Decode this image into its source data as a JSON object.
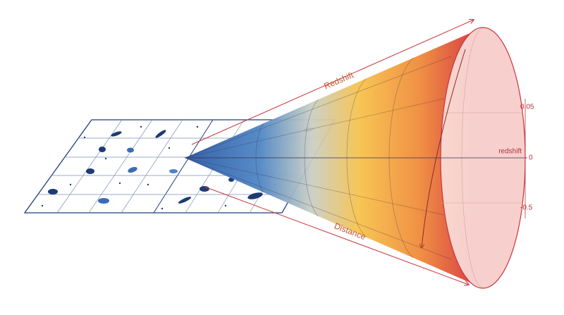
{
  "labels": {
    "redshift_arrow": "Redshift",
    "distance_arrow": "Distance",
    "axis_label": "redshift"
  },
  "axis_ticks": [
    "0.05",
    "0",
    "-0.5"
  ]
}
